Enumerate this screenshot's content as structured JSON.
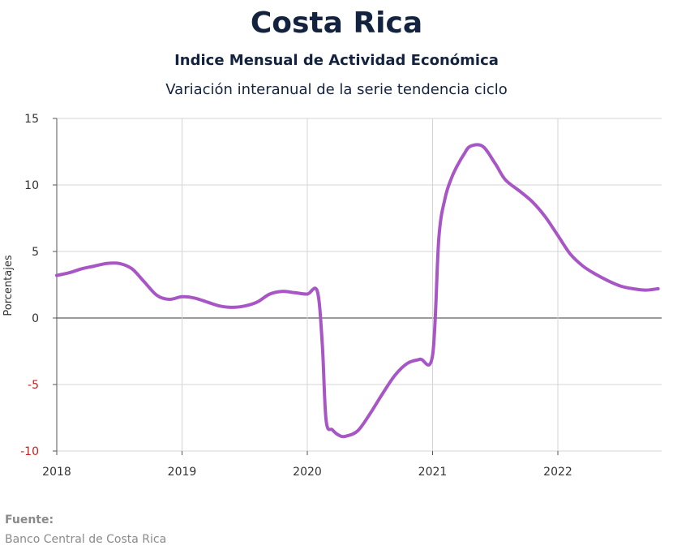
{
  "chart_data": {
    "type": "line",
    "title": "Costa Rica",
    "subtitle": "Indice Mensual de  Actividad Económica",
    "subtitle2": "Variación interanual de la serie tendencia ciclo",
    "ylabel": "Porcentajes",
    "xlabel": "",
    "ylim": [
      -10,
      15
    ],
    "yticks": [
      15,
      10,
      5,
      0,
      -5,
      -10
    ],
    "xticks": [
      "2018",
      "2019",
      "2020",
      "2021",
      "2022"
    ],
    "grid": true,
    "line_color": "#a855c6",
    "negative_tick_color": "#cc1f1f",
    "series": [
      {
        "x": [
          2018.0,
          2018.1,
          2018.2,
          2018.3,
          2018.4,
          2018.5,
          2018.6,
          2018.7,
          2018.8,
          2018.9,
          2019.0,
          2019.1,
          2019.2,
          2019.3,
          2019.4,
          2019.5,
          2019.6,
          2019.7,
          2019.8,
          2019.9,
          2020.0,
          2020.08,
          2020.12,
          2020.15,
          2020.2,
          2020.25,
          2020.3,
          2020.4,
          2020.5,
          2020.6,
          2020.7,
          2020.8,
          2020.9,
          2021.0,
          2021.05,
          2021.1,
          2021.15,
          2021.2,
          2021.25,
          2021.3,
          2021.4,
          2021.5,
          2021.58,
          2021.7,
          2021.8,
          2021.9,
          2022.0,
          2022.1,
          2022.2,
          2022.3,
          2022.4,
          2022.5,
          2022.6,
          2022.7,
          2022.8
        ],
        "values": [
          3.2,
          3.4,
          3.7,
          3.9,
          4.1,
          4.1,
          3.7,
          2.7,
          1.7,
          1.4,
          1.6,
          1.5,
          1.2,
          0.9,
          0.8,
          0.9,
          1.2,
          1.8,
          2.0,
          1.9,
          1.8,
          2.0,
          -2.0,
          -7.7,
          -8.4,
          -8.8,
          -8.9,
          -8.5,
          -7.2,
          -5.7,
          -4.3,
          -3.4,
          -3.1,
          -2.8,
          6.0,
          9.0,
          10.5,
          11.5,
          12.3,
          12.9,
          12.9,
          11.6,
          10.4,
          9.5,
          8.7,
          7.6,
          6.2,
          4.8,
          3.9,
          3.3,
          2.8,
          2.4,
          2.2,
          2.1,
          2.2
        ]
      }
    ]
  },
  "source": {
    "label": "Fuente:",
    "text": "Banco Central de Costa Rica"
  }
}
